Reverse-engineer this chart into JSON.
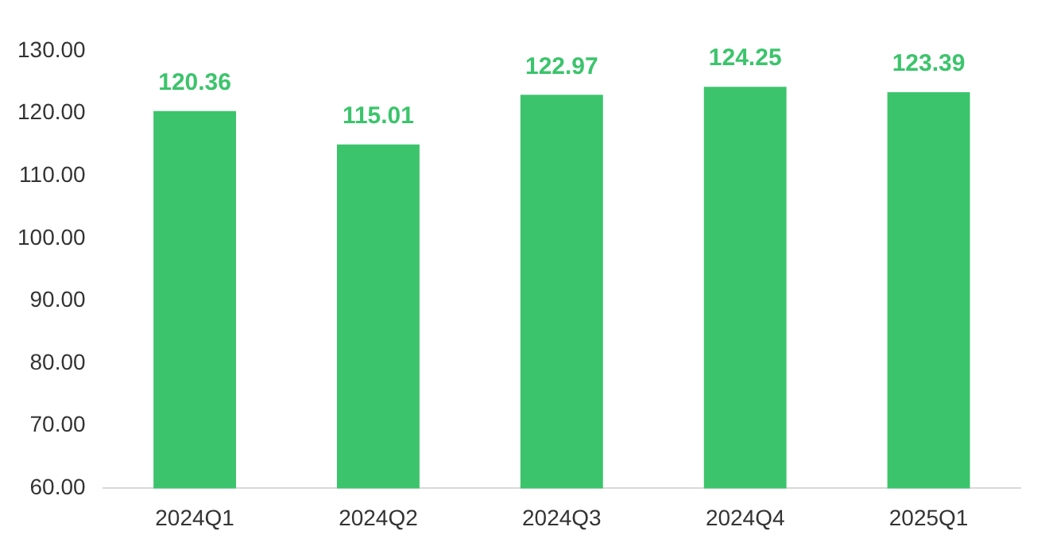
{
  "chart_data": {
    "type": "bar",
    "categories": [
      "2024Q1",
      "2024Q2",
      "2024Q3",
      "2024Q4",
      "2025Q1"
    ],
    "series": [
      {
        "color": "#3cc46c",
        "values": [
          120.36,
          115.01,
          122.97,
          124.25,
          123.39
        ]
      }
    ],
    "ylim": [
      60,
      130
    ],
    "yticks": [
      {
        "value": 60,
        "label": "60.00"
      },
      {
        "value": 70,
        "label": "70.00"
      },
      {
        "value": 80,
        "label": "80.00"
      },
      {
        "value": 90,
        "label": "90.00"
      },
      {
        "value": 100,
        "label": "100.00"
      },
      {
        "value": 110,
        "label": "110.00"
      },
      {
        "value": 120,
        "label": "120.00"
      },
      {
        "value": 130,
        "label": "130.00"
      }
    ],
    "grid": false,
    "legend": false,
    "data_labels": true
  }
}
